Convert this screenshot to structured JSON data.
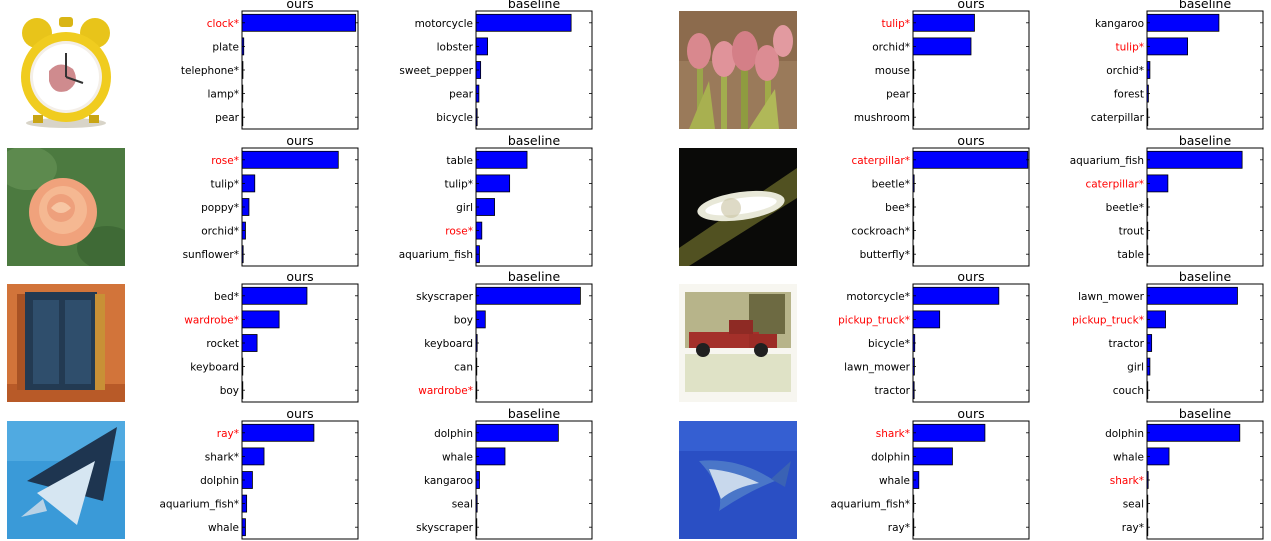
{
  "colors": {
    "bar": "#0000ff",
    "highlight": "#ff0000",
    "label": "#000000"
  },
  "chart_data": [
    {
      "type": "bar",
      "title": "ours",
      "orientation": "horizontal",
      "xlim": [
        0,
        1
      ],
      "grid": false,
      "categories": [
        "clock*",
        "plate",
        "telephone*",
        "lamp*",
        "pear"
      ],
      "values": [
        0.98,
        0.015,
        0.008,
        0.006,
        0.003
      ],
      "highlight_index": 0
    },
    {
      "type": "bar",
      "title": "baseline",
      "orientation": "horizontal",
      "xlim": [
        0,
        1
      ],
      "grid": false,
      "categories": [
        "motorcycle",
        "lobster",
        "sweet_pepper",
        "pear",
        "bicycle"
      ],
      "values": [
        0.82,
        0.1,
        0.04,
        0.025,
        0.01
      ],
      "highlight_index": null
    },
    {
      "type": "bar",
      "title": "ours",
      "orientation": "horizontal",
      "xlim": [
        0,
        1
      ],
      "grid": false,
      "categories": [
        "tulip*",
        "orchid*",
        "mouse",
        "pear",
        "mushroom"
      ],
      "values": [
        0.53,
        0.5,
        0.003,
        0.002,
        0.002
      ],
      "highlight_index": 0
    },
    {
      "type": "bar",
      "title": "baseline",
      "orientation": "horizontal",
      "xlim": [
        0,
        1
      ],
      "grid": false,
      "categories": [
        "kangaroo",
        "tulip*",
        "orchid*",
        "forest",
        "caterpillar"
      ],
      "values": [
        0.62,
        0.35,
        0.025,
        0.012,
        0.005
      ],
      "highlight_index": 1
    },
    {
      "type": "bar",
      "title": "ours",
      "orientation": "horizontal",
      "xlim": [
        0,
        1
      ],
      "grid": false,
      "categories": [
        "rose*",
        "tulip*",
        "poppy*",
        "orchid*",
        "sunflower*"
      ],
      "values": [
        0.83,
        0.11,
        0.06,
        0.03,
        0.01
      ],
      "highlight_index": 0
    },
    {
      "type": "bar",
      "title": "baseline",
      "orientation": "horizontal",
      "xlim": [
        0,
        1
      ],
      "grid": false,
      "categories": [
        "table",
        "tulip*",
        "girl",
        "rose*",
        "aquarium_fish"
      ],
      "values": [
        0.44,
        0.29,
        0.16,
        0.05,
        0.03
      ],
      "highlight_index": 3
    },
    {
      "type": "bar",
      "title": "ours",
      "orientation": "horizontal",
      "xlim": [
        0,
        1
      ],
      "grid": false,
      "categories": [
        "caterpillar*",
        "beetle*",
        "bee*",
        "cockroach*",
        "butterfly*"
      ],
      "values": [
        0.99,
        0.01,
        0.004,
        0.003,
        0.002
      ],
      "highlight_index": 0
    },
    {
      "type": "bar",
      "title": "baseline",
      "orientation": "horizontal",
      "xlim": [
        0,
        1
      ],
      "grid": false,
      "categories": [
        "aquarium_fish",
        "caterpillar*",
        "beetle*",
        "trout",
        "table"
      ],
      "values": [
        0.82,
        0.18,
        0.005,
        0.003,
        0.003
      ],
      "highlight_index": 1
    },
    {
      "type": "bar",
      "title": "ours",
      "orientation": "horizontal",
      "xlim": [
        0,
        1
      ],
      "grid": false,
      "categories": [
        "bed*",
        "wardrobe*",
        "rocket",
        "keyboard",
        "boy"
      ],
      "values": [
        0.56,
        0.32,
        0.13,
        0.005,
        0.003
      ],
      "highlight_index": 1
    },
    {
      "type": "bar",
      "title": "baseline",
      "orientation": "horizontal",
      "xlim": [
        0,
        1
      ],
      "grid": false,
      "categories": [
        "skyscraper",
        "boy",
        "keyboard",
        "can",
        "wardrobe*"
      ],
      "values": [
        0.9,
        0.08,
        0.01,
        0.006,
        0.004
      ],
      "highlight_index": 4
    },
    {
      "type": "bar",
      "title": "ours",
      "orientation": "horizontal",
      "xlim": [
        0,
        1
      ],
      "grid": false,
      "categories": [
        "motorcycle*",
        "pickup_truck*",
        "bicycle*",
        "lawn_mower",
        "tractor"
      ],
      "values": [
        0.74,
        0.23,
        0.015,
        0.012,
        0.01
      ],
      "highlight_index": 1
    },
    {
      "type": "bar",
      "title": "baseline",
      "orientation": "horizontal",
      "xlim": [
        0,
        1
      ],
      "grid": false,
      "categories": [
        "lawn_mower",
        "pickup_truck*",
        "tractor",
        "girl",
        "couch"
      ],
      "values": [
        0.78,
        0.16,
        0.04,
        0.025,
        0.005
      ],
      "highlight_index": 1
    },
    {
      "type": "bar",
      "title": "ours",
      "orientation": "horizontal",
      "xlim": [
        0,
        1
      ],
      "grid": false,
      "categories": [
        "ray*",
        "shark*",
        "dolphin",
        "aquarium_fish*",
        "whale"
      ],
      "values": [
        0.62,
        0.19,
        0.09,
        0.04,
        0.03
      ],
      "highlight_index": 0
    },
    {
      "type": "bar",
      "title": "baseline",
      "orientation": "horizontal",
      "xlim": [
        0,
        1
      ],
      "grid": false,
      "categories": [
        "dolphin",
        "whale",
        "kangaroo",
        "seal",
        "skyscraper"
      ],
      "values": [
        0.71,
        0.25,
        0.03,
        0.01,
        0.005
      ],
      "highlight_index": null
    },
    {
      "type": "bar",
      "title": "ours",
      "orientation": "horizontal",
      "xlim": [
        0,
        1
      ],
      "grid": false,
      "categories": [
        "shark*",
        "dolphin",
        "whale",
        "aquarium_fish*",
        "ray*"
      ],
      "values": [
        0.62,
        0.34,
        0.05,
        0.005,
        0.003
      ],
      "highlight_index": 0
    },
    {
      "type": "bar",
      "title": "baseline",
      "orientation": "horizontal",
      "xlim": [
        0,
        1
      ],
      "grid": false,
      "categories": [
        "dolphin",
        "whale",
        "shark*",
        "seal",
        "ray*"
      ],
      "values": [
        0.8,
        0.19,
        0.01,
        0.004,
        0.003
      ],
      "highlight_index": 2
    }
  ],
  "thumbnails": [
    {
      "icon": "alarm-clock-image"
    },
    {
      "icon": "tulip-image"
    },
    {
      "icon": "rose-image"
    },
    {
      "icon": "caterpillar-image"
    },
    {
      "icon": "wardrobe-image"
    },
    {
      "icon": "pickup-truck-image"
    },
    {
      "icon": "ray-image"
    },
    {
      "icon": "shark-image"
    }
  ]
}
